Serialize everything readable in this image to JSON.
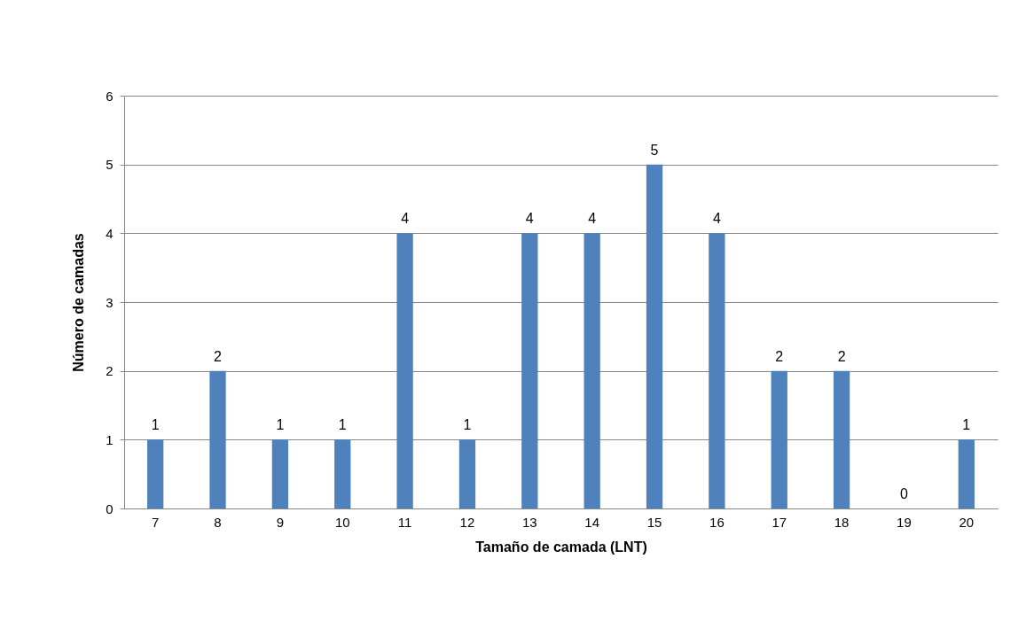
{
  "chart_data": {
    "type": "bar",
    "xlabel": "Tamaño de camada (LNT)",
    "ylabel": "Número de  camadas",
    "categories": [
      "7",
      "8",
      "9",
      "10",
      "11",
      "12",
      "13",
      "14",
      "15",
      "16",
      "17",
      "18",
      "19",
      "20"
    ],
    "values": [
      1,
      2,
      1,
      1,
      4,
      1,
      4,
      4,
      5,
      4,
      2,
      2,
      0,
      1
    ],
    "color": "#4f81bd",
    "data_labels": true,
    "ylim": [
      0,
      6
    ],
    "yticks": [
      0,
      1,
      2,
      3,
      4,
      5,
      6
    ],
    "grid": "y"
  }
}
